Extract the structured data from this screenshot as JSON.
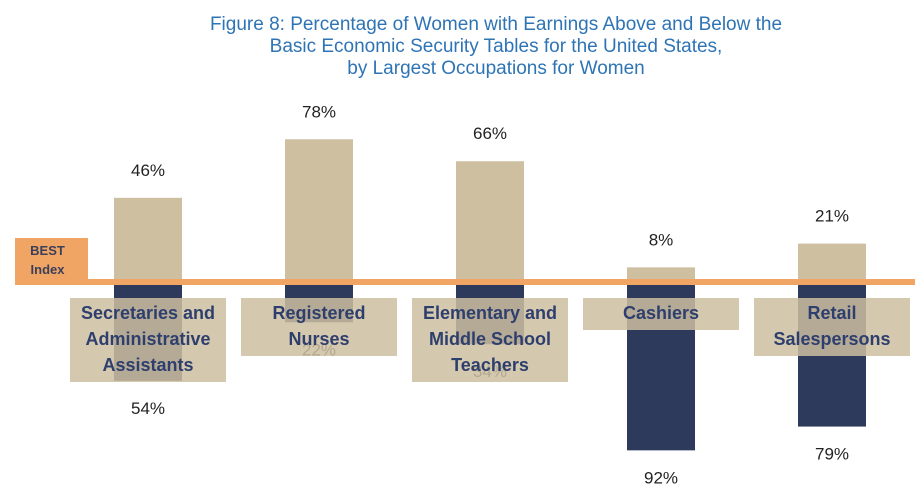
{
  "chart_data": {
    "type": "diverging_bar",
    "title": [
      "Figure 8: Percentage of Women with Earnings Above and Below the",
      "Basic Economic Security Tables for the United States,",
      "by Largest Occupations for Women"
    ],
    "annotation": "BEST Index",
    "baseline_color": "#f0a565",
    "categories": [
      "Secretaries and Administrative Assistants",
      "Registered Nurses",
      "Elementary and Middle School Teachers",
      "Cashiers",
      "Retail Salespersons"
    ],
    "series": [
      {
        "color": "#cdbfa0",
        "values": [
          46,
          78,
          66,
          8,
          21
        ],
        "value_labels": [
          "46%",
          "78%",
          "66%",
          "8%",
          "21%"
        ]
      },
      {
        "color": "#2e3a5c",
        "values": [
          54,
          22,
          34,
          92,
          79
        ],
        "value_labels": [
          "54%",
          "22%",
          "34%",
          "92%",
          "79%"
        ]
      }
    ]
  }
}
